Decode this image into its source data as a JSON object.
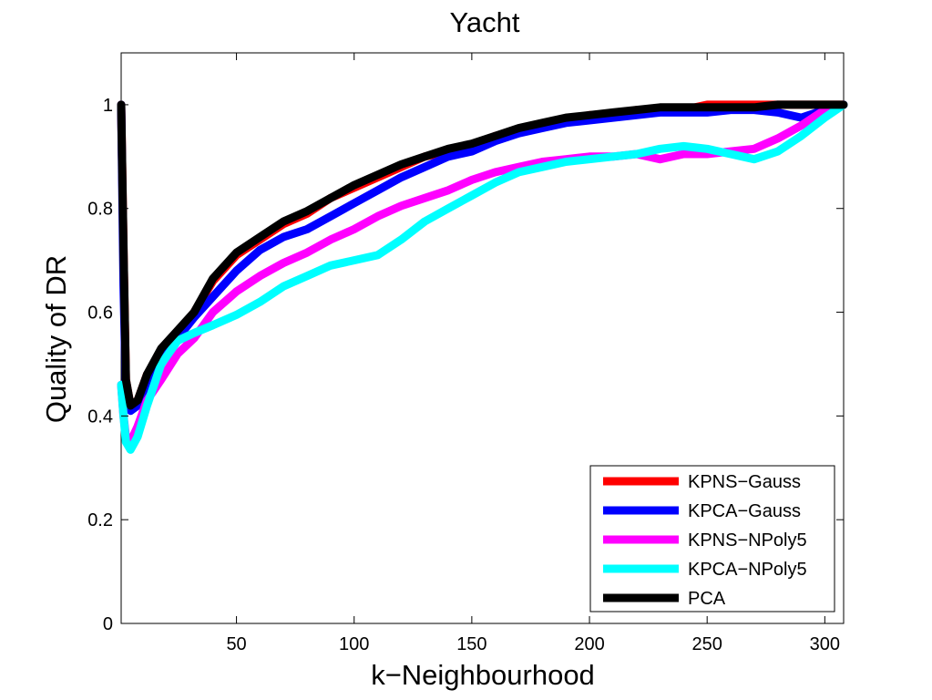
{
  "chart_data": {
    "type": "line",
    "title": "Yacht",
    "xlabel": "k−Neighbourhood",
    "ylabel": "Quality of DR",
    "xlim": [
      1,
      308
    ],
    "ylim": [
      0,
      1.1
    ],
    "xticks": [
      50,
      100,
      150,
      200,
      250,
      300
    ],
    "yticks": [
      0,
      0.2,
      0.4,
      0.6,
      0.8,
      1
    ],
    "xtick_labels": [
      "50",
      "100",
      "150",
      "200",
      "250",
      "300"
    ],
    "ytick_labels": [
      "0",
      "0.2",
      "0.4",
      "0.6",
      "0.8",
      "1"
    ],
    "grid": false,
    "legend_position": "bottom-right",
    "series": [
      {
        "name": "KPNS−Gauss",
        "color": "#ff0000",
        "points": [
          [
            1,
            1.0
          ],
          [
            2,
            0.72
          ],
          [
            3,
            0.47
          ],
          [
            5,
            0.42
          ],
          [
            8,
            0.43
          ],
          [
            12,
            0.48
          ],
          [
            18,
            0.52
          ],
          [
            25,
            0.56
          ],
          [
            32,
            0.6
          ],
          [
            40,
            0.66
          ],
          [
            50,
            0.71
          ],
          [
            60,
            0.74
          ],
          [
            70,
            0.77
          ],
          [
            80,
            0.79
          ],
          [
            90,
            0.82
          ],
          [
            100,
            0.84
          ],
          [
            110,
            0.86
          ],
          [
            120,
            0.88
          ],
          [
            130,
            0.9
          ],
          [
            140,
            0.91
          ],
          [
            150,
            0.92
          ],
          [
            160,
            0.94
          ],
          [
            170,
            0.95
          ],
          [
            180,
            0.96
          ],
          [
            190,
            0.97
          ],
          [
            200,
            0.98
          ],
          [
            210,
            0.98
          ],
          [
            220,
            0.99
          ],
          [
            230,
            0.99
          ],
          [
            240,
            0.99
          ],
          [
            250,
            1.0
          ],
          [
            260,
            1.0
          ],
          [
            270,
            1.0
          ],
          [
            280,
            1.0
          ],
          [
            290,
            1.0
          ],
          [
            300,
            1.0
          ],
          [
            308,
            1.0
          ]
        ]
      },
      {
        "name": "KPCA−Gauss",
        "color": "#0000ff",
        "points": [
          [
            1,
            1.0
          ],
          [
            2,
            0.65
          ],
          [
            3,
            0.45
          ],
          [
            5,
            0.41
          ],
          [
            8,
            0.42
          ],
          [
            12,
            0.46
          ],
          [
            18,
            0.51
          ],
          [
            25,
            0.55
          ],
          [
            32,
            0.59
          ],
          [
            40,
            0.63
          ],
          [
            50,
            0.68
          ],
          [
            60,
            0.72
          ],
          [
            70,
            0.745
          ],
          [
            80,
            0.76
          ],
          [
            90,
            0.785
          ],
          [
            100,
            0.81
          ],
          [
            110,
            0.835
          ],
          [
            120,
            0.86
          ],
          [
            130,
            0.88
          ],
          [
            140,
            0.9
          ],
          [
            150,
            0.91
          ],
          [
            160,
            0.93
          ],
          [
            170,
            0.945
          ],
          [
            180,
            0.955
          ],
          [
            190,
            0.965
          ],
          [
            200,
            0.97
          ],
          [
            210,
            0.975
          ],
          [
            220,
            0.98
          ],
          [
            230,
            0.985
          ],
          [
            240,
            0.985
          ],
          [
            250,
            0.985
          ],
          [
            260,
            0.99
          ],
          [
            270,
            0.99
          ],
          [
            280,
            0.985
          ],
          [
            290,
            0.975
          ],
          [
            300,
            0.99
          ],
          [
            308,
            1.0
          ]
        ]
      },
      {
        "name": "KPNS−NPoly5",
        "color": "#ff00ff",
        "points": [
          [
            1,
            0.46
          ],
          [
            2,
            0.4
          ],
          [
            3,
            0.36
          ],
          [
            5,
            0.35
          ],
          [
            8,
            0.38
          ],
          [
            12,
            0.43
          ],
          [
            18,
            0.47
          ],
          [
            25,
            0.52
          ],
          [
            32,
            0.55
          ],
          [
            40,
            0.6
          ],
          [
            50,
            0.64
          ],
          [
            60,
            0.67
          ],
          [
            70,
            0.695
          ],
          [
            80,
            0.715
          ],
          [
            90,
            0.74
          ],
          [
            100,
            0.76
          ],
          [
            110,
            0.785
          ],
          [
            120,
            0.805
          ],
          [
            130,
            0.82
          ],
          [
            140,
            0.835
          ],
          [
            150,
            0.855
          ],
          [
            160,
            0.87
          ],
          [
            170,
            0.88
          ],
          [
            180,
            0.89
          ],
          [
            190,
            0.895
          ],
          [
            200,
            0.9
          ],
          [
            210,
            0.9
          ],
          [
            220,
            0.905
          ],
          [
            230,
            0.895
          ],
          [
            240,
            0.905
          ],
          [
            250,
            0.905
          ],
          [
            260,
            0.91
          ],
          [
            270,
            0.915
          ],
          [
            280,
            0.935
          ],
          [
            290,
            0.96
          ],
          [
            300,
            0.99
          ],
          [
            308,
            1.0
          ]
        ]
      },
      {
        "name": "KPCA−NPoly5",
        "color": "#00ffff",
        "points": [
          [
            1,
            0.46
          ],
          [
            2,
            0.4
          ],
          [
            3,
            0.35
          ],
          [
            5,
            0.335
          ],
          [
            8,
            0.36
          ],
          [
            12,
            0.42
          ],
          [
            18,
            0.5
          ],
          [
            25,
            0.545
          ],
          [
            32,
            0.56
          ],
          [
            40,
            0.575
          ],
          [
            50,
            0.595
          ],
          [
            60,
            0.62
          ],
          [
            70,
            0.65
          ],
          [
            80,
            0.67
          ],
          [
            90,
            0.69
          ],
          [
            100,
            0.7
          ],
          [
            110,
            0.71
          ],
          [
            120,
            0.74
          ],
          [
            130,
            0.775
          ],
          [
            140,
            0.8
          ],
          [
            150,
            0.825
          ],
          [
            160,
            0.85
          ],
          [
            170,
            0.87
          ],
          [
            180,
            0.88
          ],
          [
            190,
            0.89
          ],
          [
            200,
            0.895
          ],
          [
            210,
            0.9
          ],
          [
            220,
            0.905
          ],
          [
            230,
            0.915
          ],
          [
            240,
            0.92
          ],
          [
            250,
            0.915
          ],
          [
            260,
            0.905
          ],
          [
            270,
            0.895
          ],
          [
            280,
            0.91
          ],
          [
            290,
            0.94
          ],
          [
            300,
            0.975
          ],
          [
            308,
            1.0
          ]
        ]
      },
      {
        "name": "PCA",
        "color": "#000000",
        "points": [
          [
            1,
            1.0
          ],
          [
            2,
            0.72
          ],
          [
            3,
            0.47
          ],
          [
            5,
            0.42
          ],
          [
            8,
            0.43
          ],
          [
            12,
            0.48
          ],
          [
            18,
            0.53
          ],
          [
            25,
            0.565
          ],
          [
            32,
            0.6
          ],
          [
            40,
            0.665
          ],
          [
            50,
            0.715
          ],
          [
            60,
            0.745
          ],
          [
            70,
            0.775
          ],
          [
            80,
            0.795
          ],
          [
            90,
            0.82
          ],
          [
            100,
            0.845
          ],
          [
            110,
            0.865
          ],
          [
            120,
            0.885
          ],
          [
            130,
            0.9
          ],
          [
            140,
            0.915
          ],
          [
            150,
            0.925
          ],
          [
            160,
            0.94
          ],
          [
            170,
            0.955
          ],
          [
            180,
            0.965
          ],
          [
            190,
            0.975
          ],
          [
            200,
            0.98
          ],
          [
            210,
            0.985
          ],
          [
            220,
            0.99
          ],
          [
            230,
            0.995
          ],
          [
            240,
            0.995
          ],
          [
            250,
            0.995
          ],
          [
            260,
            0.995
          ],
          [
            270,
            0.995
          ],
          [
            280,
            1.0
          ],
          [
            290,
            1.0
          ],
          [
            300,
            1.0
          ],
          [
            308,
            1.0
          ]
        ]
      }
    ]
  }
}
